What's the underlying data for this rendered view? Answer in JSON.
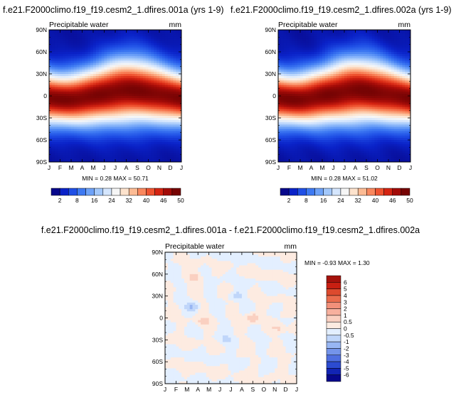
{
  "chart_data": [
    {
      "type": "heatmap",
      "title": "f.e21.F2000climo.f19_f19.cesm2_1.dfires.001a (yrs 1-9)",
      "variable": "Precipitable water",
      "units": "mm",
      "x_ticks": [
        "J",
        "F",
        "M",
        "A",
        "M",
        "J",
        "J",
        "A",
        "S",
        "O",
        "N",
        "D",
        "J"
      ],
      "y_ticks": [
        "90N",
        "60N",
        "30N",
        "0",
        "30S",
        "60S",
        "90S"
      ],
      "stats": "MIN =  0.28 MAX =  50.71",
      "colorbar_labels": [
        "2",
        "8",
        "16",
        "24",
        "32",
        "40",
        "46",
        "50"
      ],
      "colorbar_colors": [
        "#08088c",
        "#0a22c8",
        "#1f4fe6",
        "#3d79f2",
        "#6ea2f8",
        "#a3c8fb",
        "#d5e6fd",
        "#f6f6f6",
        "#fde3cd",
        "#fcbb94",
        "#f9885e",
        "#ef5330",
        "#d52412",
        "#a30b08",
        "#770404"
      ],
      "colorbar_position": "bottom",
      "clim": [
        0,
        52
      ]
    },
    {
      "type": "heatmap",
      "title": "f.e21.F2000climo.f19_f19.cesm2_1.dfires.002a (yrs 1-9)",
      "variable": "Precipitable water",
      "units": "mm",
      "x_ticks": [
        "J",
        "F",
        "M",
        "A",
        "M",
        "J",
        "J",
        "A",
        "S",
        "O",
        "N",
        "D",
        "J"
      ],
      "y_ticks": [
        "90N",
        "60N",
        "30N",
        "0",
        "30S",
        "60S",
        "90S"
      ],
      "stats": "MIN =  0.28 MAX =  51.02",
      "colorbar_labels": [
        "2",
        "8",
        "16",
        "24",
        "32",
        "40",
        "46",
        "50"
      ],
      "colorbar_colors": [
        "#08088c",
        "#0a22c8",
        "#1f4fe6",
        "#3d79f2",
        "#6ea2f8",
        "#a3c8fb",
        "#d5e6fd",
        "#f6f6f6",
        "#fde3cd",
        "#fcbb94",
        "#f9885e",
        "#ef5330",
        "#d52412",
        "#a30b08",
        "#770404"
      ],
      "colorbar_position": "bottom",
      "clim": [
        0,
        52
      ]
    },
    {
      "type": "heatmap",
      "title": "f.e21.F2000climo.f19_f19.cesm2_1.dfires.001a - f.e21.F2000climo.f19_f19.cesm2_1.dfires.002a",
      "variable": "Precipitable water",
      "units": "mm",
      "x_ticks": [
        "J",
        "F",
        "M",
        "A",
        "M",
        "J",
        "J",
        "A",
        "S",
        "O",
        "N",
        "D",
        "J"
      ],
      "y_ticks": [
        "90N",
        "60N",
        "30N",
        "0",
        "30S",
        "60S",
        "90S"
      ],
      "stats": "MIN =  -0.93 MAX =   1.30",
      "colorbar_labels": [
        "6",
        "5",
        "4",
        "3",
        "2",
        "1",
        "0.5",
        "0",
        "-0.5",
        "-1",
        "-2",
        "-3",
        "-4",
        "-5",
        "-6"
      ],
      "colorbar_colors": [
        "#a5120c",
        "#c81f12",
        "#dd4a2e",
        "#ea6c4d",
        "#f2907a",
        "#f7b09e",
        "#fad0c1",
        "#fdebe1",
        "#e3efff",
        "#c0d6fa",
        "#98b6f3",
        "#7494ea",
        "#4f6fe0",
        "#2c4bd0",
        "#1224b4",
        "#07078c"
      ],
      "colorbar_position": "right",
      "clim": [
        -6,
        6
      ]
    }
  ]
}
